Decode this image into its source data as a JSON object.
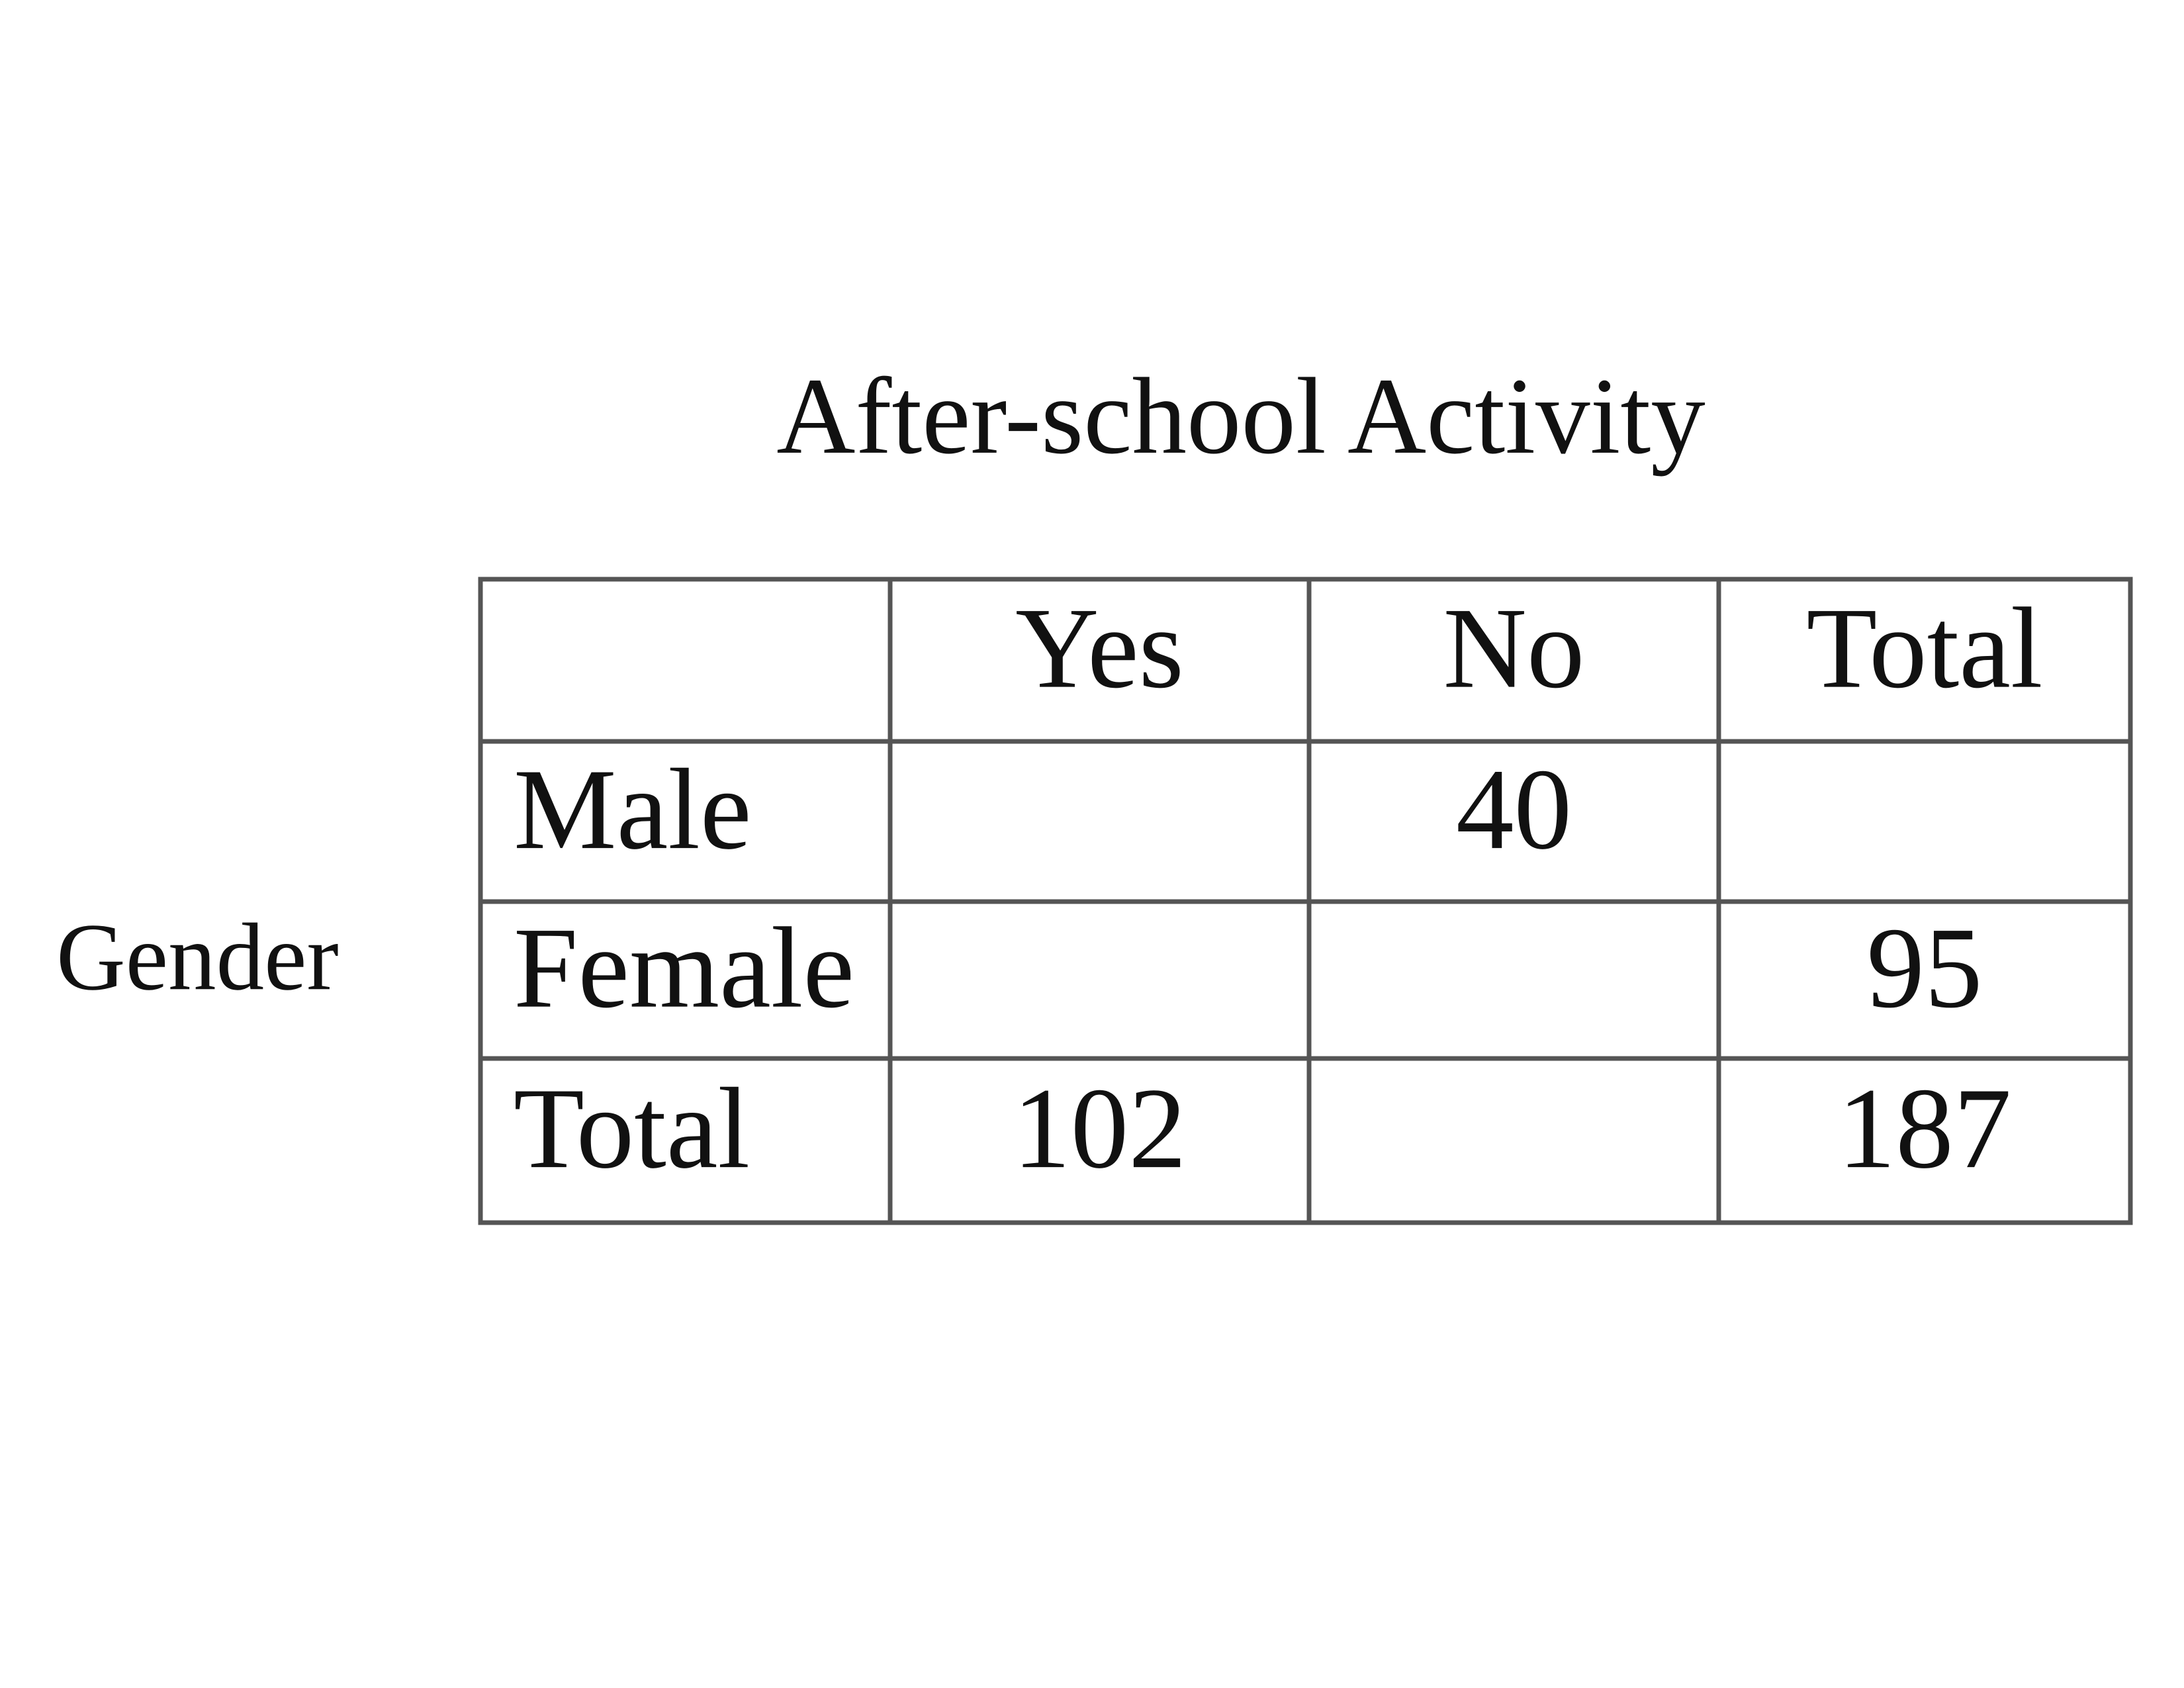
{
  "title": "After-school Activity",
  "row_group_label": "Gender",
  "table": {
    "header": [
      "Yes",
      "No",
      "Total"
    ],
    "rows": [
      {
        "label": "Male",
        "cells": [
          null,
          40,
          null
        ]
      },
      {
        "label": "Female",
        "cells": [
          null,
          null,
          95
        ]
      },
      {
        "label": "Total",
        "cells": [
          102,
          null,
          187
        ]
      }
    ]
  }
}
